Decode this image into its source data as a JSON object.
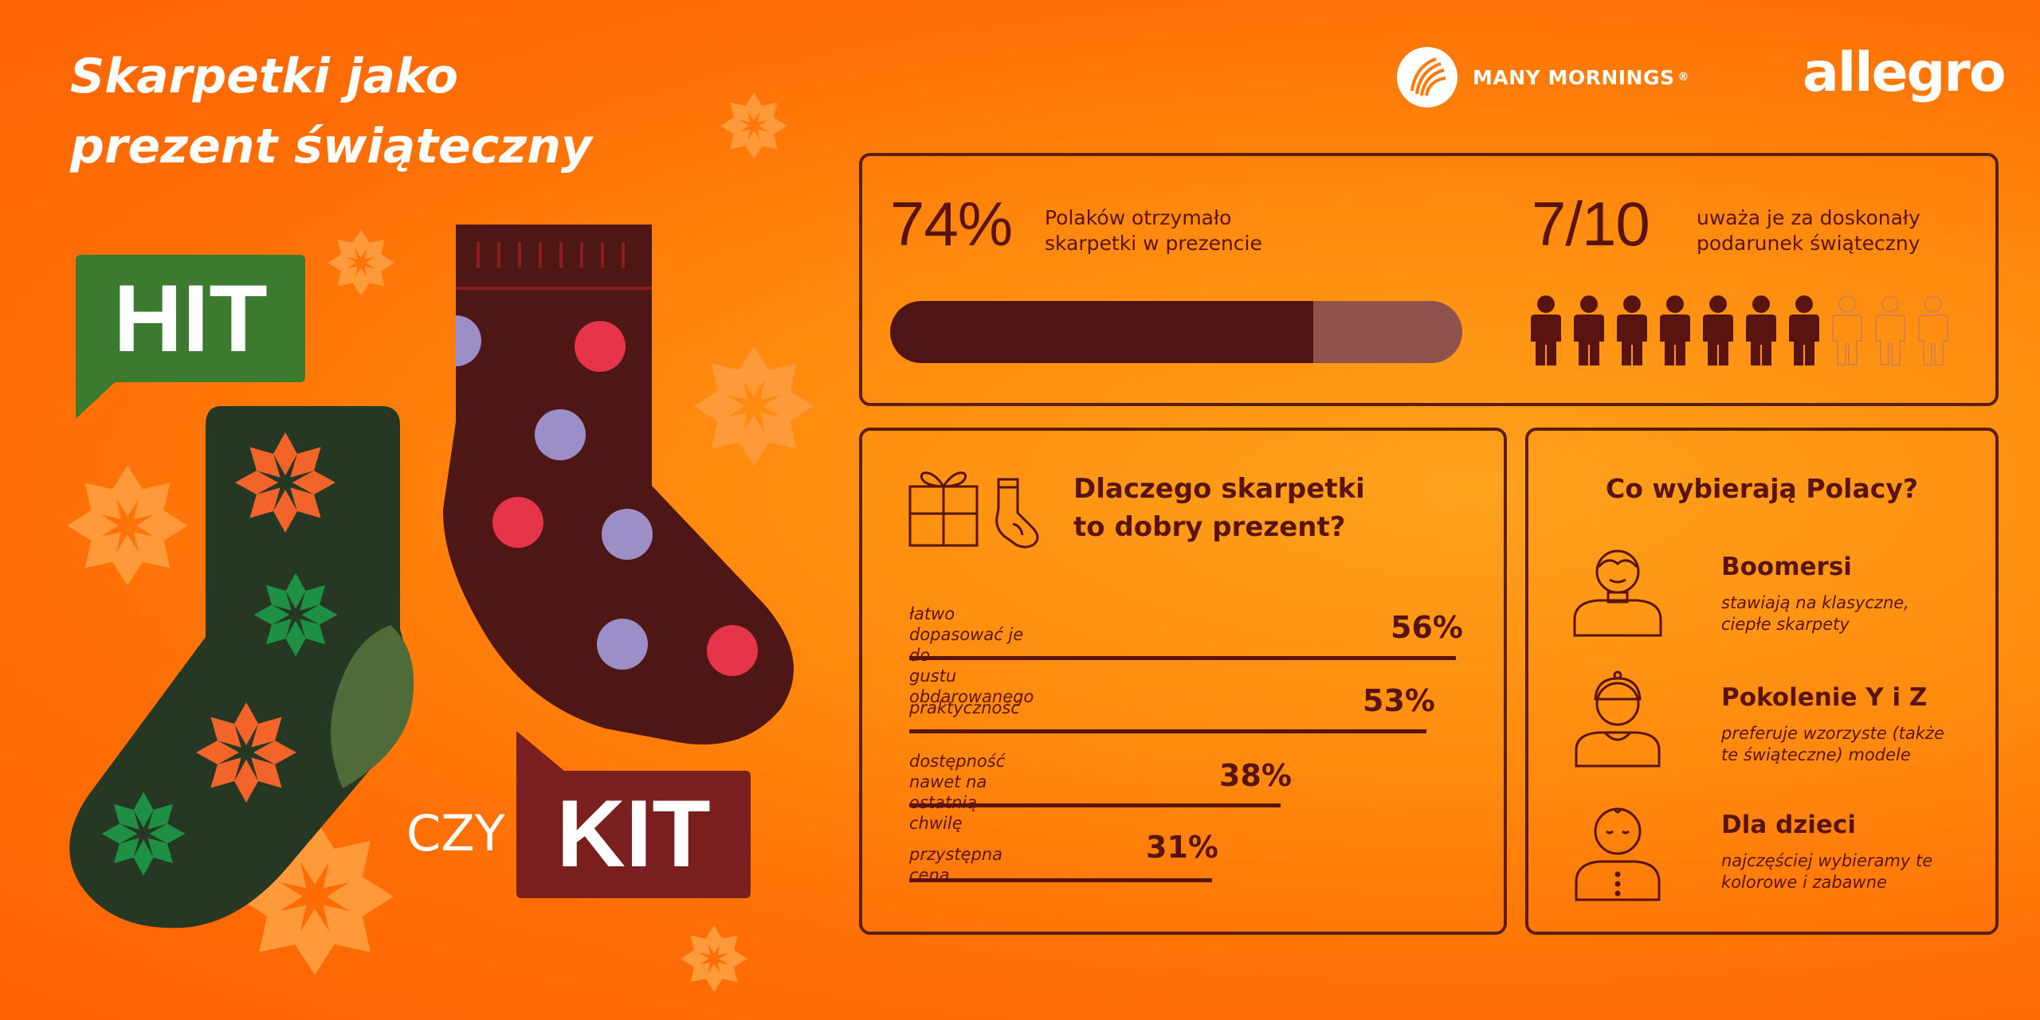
{
  "title": "Skarpetki jako\nprezent świąteczny",
  "logos": {
    "many_mornings": "MANY MORNINGS",
    "registered": "®",
    "allegro": "allegro"
  },
  "tags": {
    "hit": "HIT",
    "czy": "CZY",
    "kit": "KIT"
  },
  "stats": {
    "received": {
      "value": "74%",
      "fraction": 0.74,
      "text": "Polaków otrzymało\nskarpetki w prezencie"
    },
    "rating": {
      "value": "7/10",
      "filled": 7,
      "total": 10,
      "text": "uważa je za doskonały\npodarunek świąteczny"
    }
  },
  "colors": {
    "accent_dark": "#5a1410",
    "bar_fill": "#4f1516",
    "bar_track": "#8f524c",
    "hit_green": "#2e7d32",
    "kit_red": "#7a1e1e",
    "background": "#ff7a0a"
  },
  "reasons": {
    "heading": "Dlaczego skarpetki\nto dobry prezent?",
    "icons": [
      "gift-icon",
      "sock-icon"
    ]
  },
  "chart_data": {
    "type": "bar",
    "orientation": "horizontal",
    "title": "Dlaczego skarpetki to dobry prezent?",
    "categories": [
      "łatwo dopasować je do\ngustu obdarowanego",
      "praktyczność",
      "dostępność nawet na\nostatnią chwilę",
      "przystępna cena"
    ],
    "values": [
      56,
      53,
      38,
      31
    ],
    "labels": [
      "56%",
      "53%",
      "38%",
      "31%"
    ],
    "unit": "%"
  },
  "segments": {
    "heading": "Co wybierają Polacy?",
    "items": [
      {
        "name": "Boomersi",
        "desc": "stawiają na klasyczne,\nciepłe skarpety",
        "icon": "older-person-icon"
      },
      {
        "name": "Pokolenie Y i Z",
        "desc": "preferuje wzorzyste (także\nte świąteczne) modele",
        "icon": "young-person-cap-icon"
      },
      {
        "name": "Dla dzieci",
        "desc": "najczęściej wybieramy te\nkolorowe i zabawne",
        "icon": "child-icon"
      }
    ]
  }
}
